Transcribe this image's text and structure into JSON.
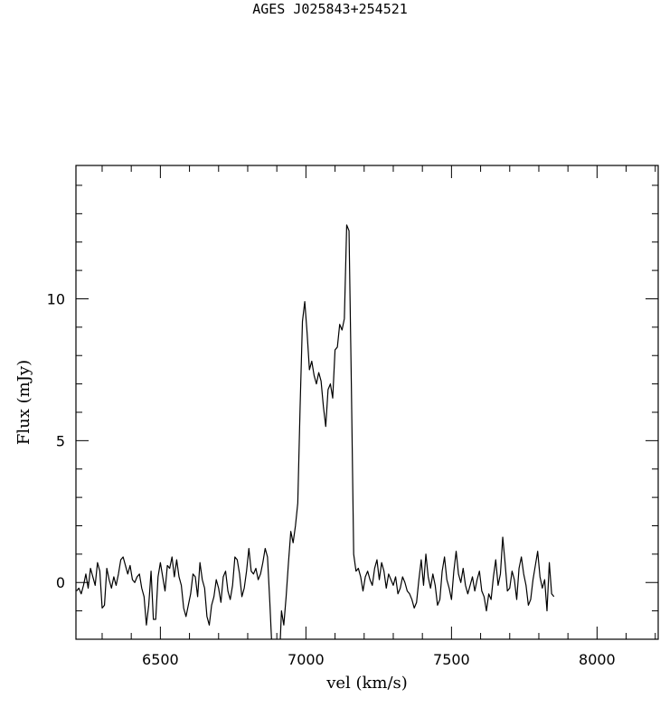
{
  "chart_data": {
    "type": "line",
    "title": "AGES J025843+254521",
    "xlabel": "vel (km/s)",
    "ylabel": "Flux (mJy)",
    "xlim": [
      6210,
      8210
    ],
    "ylim": [
      -2.0,
      14.7
    ],
    "x_ticks": [
      6500,
      7000,
      7500,
      8000
    ],
    "y_ticks": [
      0,
      5,
      10
    ],
    "x_ticks_labels": [
      "6500",
      "7000",
      "7500",
      "8000"
    ],
    "y_ticks_labels": [
      "0",
      "5",
      "10"
    ],
    "grid": false,
    "series": [
      {
        "x_start": 6212,
        "x_step": 8,
        "values": [
          -0.3,
          -0.2,
          -0.4,
          -0.1,
          0.3,
          -0.2,
          0.5,
          0.2,
          -0.1,
          0.7,
          0.4,
          -0.9,
          -0.8,
          0.5,
          0.1,
          -0.2,
          0.2,
          -0.1,
          0.3,
          0.8,
          0.9,
          0.6,
          0.3,
          0.6,
          0.1,
          0.0,
          0.2,
          0.3,
          -0.2,
          -0.5,
          -1.5,
          -0.8,
          0.4,
          -1.3,
          -1.3,
          0.2,
          0.7,
          0.2,
          -0.3,
          0.6,
          0.5,
          0.9,
          0.2,
          0.8,
          0.2,
          -0.1,
          -0.9,
          -1.2,
          -0.8,
          -0.4,
          0.3,
          0.2,
          -0.5,
          0.7,
          0.1,
          -0.2,
          -1.2,
          -1.5,
          -0.8,
          -0.5,
          0.1,
          -0.2,
          -0.7,
          0.2,
          0.4,
          -0.3,
          -0.6,
          -0.1,
          0.9,
          0.8,
          0.3,
          -0.5,
          -0.2,
          0.4,
          1.2,
          0.4,
          0.3,
          0.5,
          0.1,
          0.3,
          0.7,
          1.2,
          0.9,
          -0.7,
          -2.5,
          -5.0,
          -5.0,
          -3.0,
          -1.0,
          -1.5,
          -0.5,
          0.7,
          1.8,
          1.4,
          2.0,
          2.8,
          6.2,
          9.2,
          9.9,
          8.8,
          7.5,
          7.8,
          7.3,
          7.0,
          7.4,
          7.1,
          6.2,
          5.5,
          6.8,
          7.0,
          6.5,
          8.2,
          8.3,
          9.1,
          8.9,
          9.3,
          12.6,
          12.4,
          7.0,
          1.0,
          0.4,
          0.5,
          0.2,
          -0.3,
          0.2,
          0.4,
          0.1,
          -0.1,
          0.5,
          0.8,
          0.1,
          0.7,
          0.4,
          -0.2,
          0.3,
          0.1,
          -0.1,
          0.2,
          -0.4,
          -0.2,
          0.2,
          0.0,
          -0.3,
          -0.4,
          -0.6,
          -0.9,
          -0.7,
          0.1,
          0.8,
          -0.1,
          1.0,
          0.2,
          -0.2,
          0.3,
          -0.1,
          -0.8,
          -0.6,
          0.4,
          0.9,
          0.1,
          -0.2,
          -0.6,
          0.4,
          1.1,
          0.3,
          0.0,
          0.5,
          -0.1,
          -0.4,
          -0.1,
          0.2,
          -0.3,
          0.1,
          0.4,
          -0.3,
          -0.5,
          -1.0,
          -0.4,
          -0.6,
          0.2,
          0.8,
          -0.1,
          0.3,
          1.6,
          0.7,
          -0.3,
          -0.2,
          0.4,
          0.1,
          -0.6,
          0.5,
          0.9,
          0.3,
          -0.1,
          -0.8,
          -0.6,
          0.1,
          0.6,
          1.1,
          0.2,
          -0.2,
          0.1,
          -1.0,
          0.7,
          -0.4,
          -0.5
        ],
        "color": "#000000"
      }
    ]
  }
}
